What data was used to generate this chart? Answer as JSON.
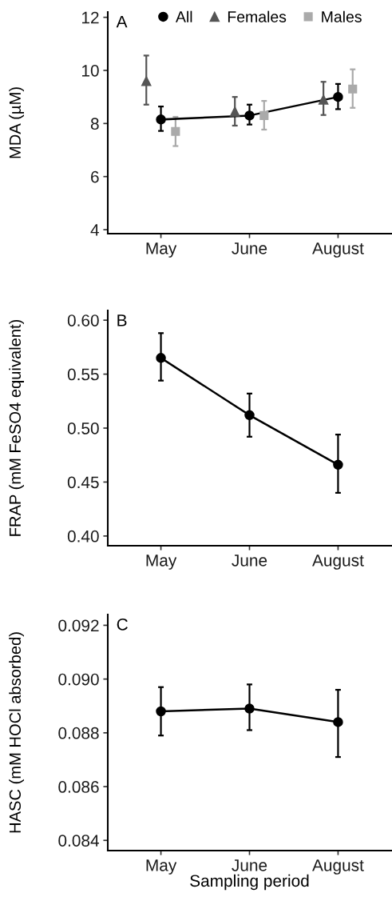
{
  "chart_data": [
    {
      "type": "line",
      "ylabel": "MDA (µM)",
      "annotations": [
        "A"
      ],
      "categories": [
        "May",
        "June",
        "August"
      ],
      "ylim": [
        3.85,
        12.2
      ],
      "yticks": [
        4,
        6,
        8,
        10,
        12
      ],
      "grid": false,
      "legend": "top",
      "series": [
        {
          "name": "All",
          "type": "line",
          "marker": "circle",
          "color": "#000000",
          "values": [
            8.15,
            8.3,
            9.0
          ],
          "errors": [
            [
              7.72,
              8.64
            ],
            [
              7.96,
              8.71
            ],
            [
              8.54,
              9.49
            ]
          ]
        },
        {
          "name": "Females",
          "type": "scatter",
          "marker": "triangle",
          "color": "#555555",
          "values": [
            9.6,
            8.45,
            8.9
          ],
          "errors": [
            [
              8.71,
              10.56
            ],
            [
              7.92,
              9.0
            ],
            [
              8.32,
              9.57
            ]
          ]
        },
        {
          "name": "Males",
          "type": "scatter",
          "marker": "square",
          "color": "#aaaaaa",
          "values": [
            7.7,
            8.3,
            9.3
          ],
          "errors": [
            [
              7.15,
              8.25
            ],
            [
              7.77,
              8.85
            ],
            [
              8.59,
              10.04
            ]
          ]
        }
      ]
    },
    {
      "type": "line",
      "ylabel": "FRAP (mM FeSO4 equivalent)",
      "annotations": [
        "B"
      ],
      "categories": [
        "May",
        "June",
        "August"
      ],
      "ylim": [
        0.391,
        0.609
      ],
      "yticks": [
        {
          "value": 0.4,
          "label": "0.40"
        },
        0.45,
        {
          "value": 0.5,
          "label": "0.50"
        },
        0.55,
        {
          "value": 0.6,
          "label": "0.60"
        }
      ],
      "grid": false,
      "marker": "circle",
      "series": [
        {
          "color": "#000000",
          "values": [
            0.565,
            0.512,
            0.466
          ],
          "errors": [
            [
              0.544,
              0.588
            ],
            [
              0.492,
              0.532
            ],
            [
              0.44,
              0.494
            ]
          ]
        }
      ]
    },
    {
      "type": "line",
      "ylabel": "HASC (mM HOCl absorbed)",
      "xlabel": "Sampling period",
      "annotations": [
        "C"
      ],
      "categories": [
        "May",
        "June",
        "August"
      ],
      "ylim": [
        0.08362,
        0.0924
      ],
      "yticks": [
        0.084,
        0.086,
        0.088,
        {
          "value": 0.09,
          "label": "0.090"
        },
        0.092
      ],
      "grid": false,
      "marker": "circle",
      "series": [
        {
          "color": "#000000",
          "values": [
            0.0888,
            0.0889,
            0.0884
          ],
          "errors": [
            [
              0.0879,
              0.0897
            ],
            [
              0.0881,
              0.0898
            ],
            [
              0.0871,
              0.0896
            ]
          ]
        }
      ]
    }
  ]
}
